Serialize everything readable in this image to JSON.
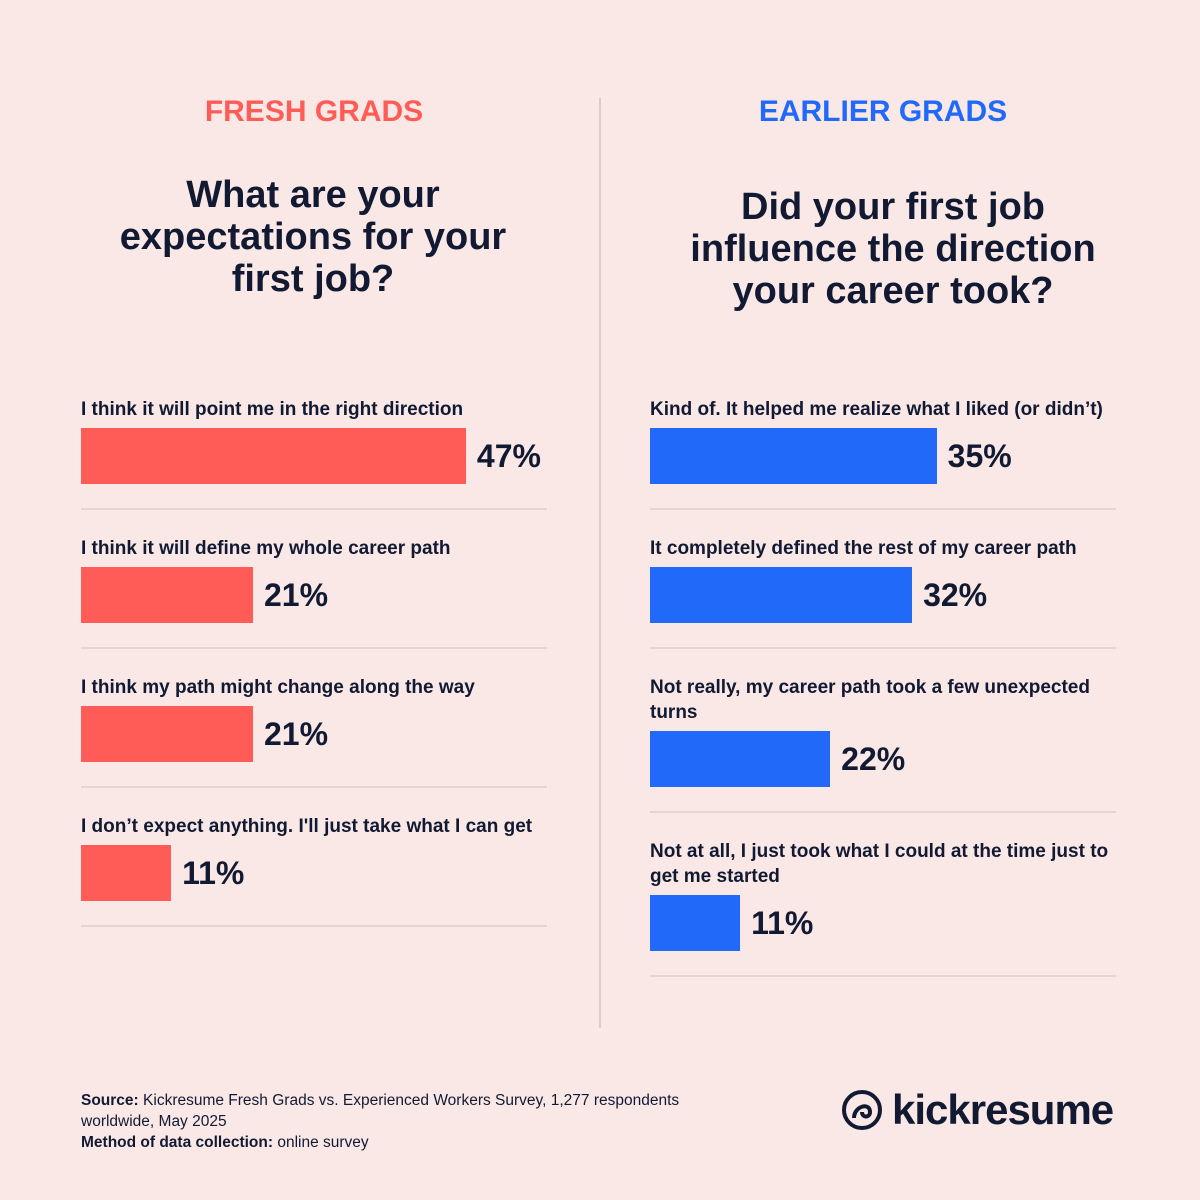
{
  "chart_data": [
    {
      "type": "bar",
      "header": "FRESH GRADS",
      "header_color": "#ff5c58",
      "title": "What are your expectations for your first job?",
      "categories": [
        "I think it will point me in the right direction",
        "I think it will define my whole career path",
        "I think my path might change along the way",
        "I don’t expect anything. I'll just take what I can get"
      ],
      "values": [
        47,
        21,
        21,
        11
      ],
      "value_labels": [
        "47%",
        "21%",
        "21%",
        "11%"
      ],
      "color": "#ff5c58"
    },
    {
      "type": "bar",
      "header": "EARLIER GRADS",
      "header_color": "#2169f8",
      "title": "Did your first job influence the direction your career took?",
      "categories": [
        "Kind of. It helped me realize what I liked (or didn’t)",
        "It completely defined the rest of my career path",
        "Not really, my career path took a few unexpected turns",
        "Not at all, I just took what I could at the time just to get me started"
      ],
      "values": [
        35,
        32,
        22,
        11
      ],
      "value_labels": [
        "35%",
        "32%",
        "22%",
        "11%"
      ],
      "color": "#2169f8"
    }
  ],
  "footer": {
    "source_label": "Source:",
    "source_text": "Kickresume Fresh Grads vs. Experienced Workers Survey, 1,277 respondents worldwide, May 2025",
    "method_label": "Method of data collection:",
    "method_text": "online survey"
  },
  "logo": "kickresume"
}
